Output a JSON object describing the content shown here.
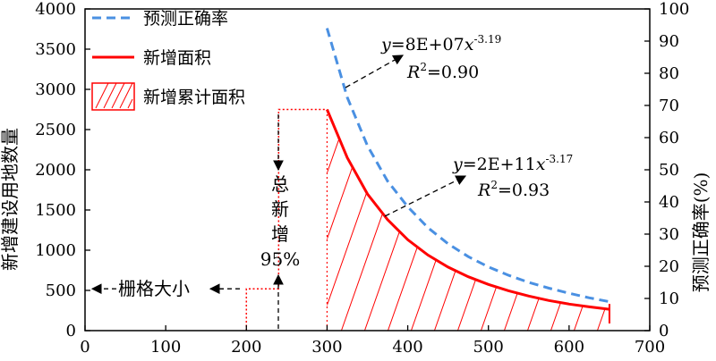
{
  "chart_data": {
    "type": "line",
    "title": "",
    "xlabel": "",
    "ylabel": "新增建设用地数量",
    "y2label": "预测正确率(%)",
    "xlim": [
      0,
      700
    ],
    "ylim": [
      0,
      4000
    ],
    "y2lim": [
      0,
      100
    ],
    "xticks": [
      "0",
      "100",
      "200",
      "300",
      "400",
      "500",
      "600",
      "700"
    ],
    "yticks": [
      "0",
      "500",
      "1000",
      "1500",
      "2000",
      "2500",
      "3000",
      "3500",
      "4000"
    ],
    "y2ticks": [
      "0",
      "10",
      "20",
      "30",
      "40",
      "50",
      "60",
      "70",
      "80",
      "90",
      "100"
    ],
    "grid": false,
    "legend_position": "top-left",
    "series": [
      {
        "name": "预测正确率",
        "axis": "right",
        "style": "dashed",
        "color": "#4a90e2",
        "x": [
          300,
          325,
          350,
          375,
          400,
          425,
          450,
          475,
          500,
          525,
          550,
          575,
          600,
          625,
          650
        ],
        "y": [
          94.0,
          72.5,
          57.5,
          46.5,
          38.5,
          32.0,
          27.0,
          23.0,
          19.8,
          17.2,
          15.0,
          13.2,
          11.6,
          10.2,
          9.0
        ]
      },
      {
        "name": "新增面积",
        "axis": "left",
        "style": "solid",
        "color": "#ff0000",
        "x": [
          300,
          325,
          350,
          375,
          400,
          425,
          450,
          475,
          500,
          525,
          550,
          575,
          600,
          625,
          650
        ],
        "y": [
          2750,
          2150,
          1700,
          1380,
          1130,
          940,
          790,
          670,
          575,
          495,
          430,
          375,
          330,
          295,
          265
        ]
      },
      {
        "name": "新增累计面积",
        "type": "hatched-area",
        "axis": "left",
        "color": "#ff0000",
        "x_range": [
          300,
          650
        ]
      }
    ],
    "step_line": {
      "color": "#ff0000",
      "points": [
        [
          200,
          0
        ],
        [
          200,
          520
        ],
        [
          240,
          520
        ],
        [
          240,
          2750
        ],
        [
          300,
          2750
        ]
      ]
    },
    "annotations": [
      {
        "text_parts": [
          "y",
          "=8E+07",
          "x",
          "-3.19"
        ],
        "r2": "0.90"
      },
      {
        "text_parts": [
          "y",
          "=2E+11",
          "x",
          "-3.17"
        ],
        "r2": "0.93"
      },
      {
        "text": "总新增95%"
      },
      {
        "text": "栅格大小"
      }
    ]
  },
  "labels": {
    "eq1_y": "y",
    "eq1_mid": "=8E+07",
    "eq1_x": "x",
    "eq1_exp": "-3.19",
    "eq1_r": "R",
    "eq1_r_sup": "2",
    "eq1_r_val": "=0.90",
    "eq2_y": "y",
    "eq2_mid": "=2E+11",
    "eq2_x": "x",
    "eq2_exp": "-3.17",
    "eq2_r": "R",
    "eq2_r_sup": "2",
    "eq2_r_val": "=0.93",
    "ann_total_1": "总",
    "ann_total_2": "新",
    "ann_total_3": "增",
    "ann_total_4": "95%",
    "ann_grid": "栅格大小"
  }
}
